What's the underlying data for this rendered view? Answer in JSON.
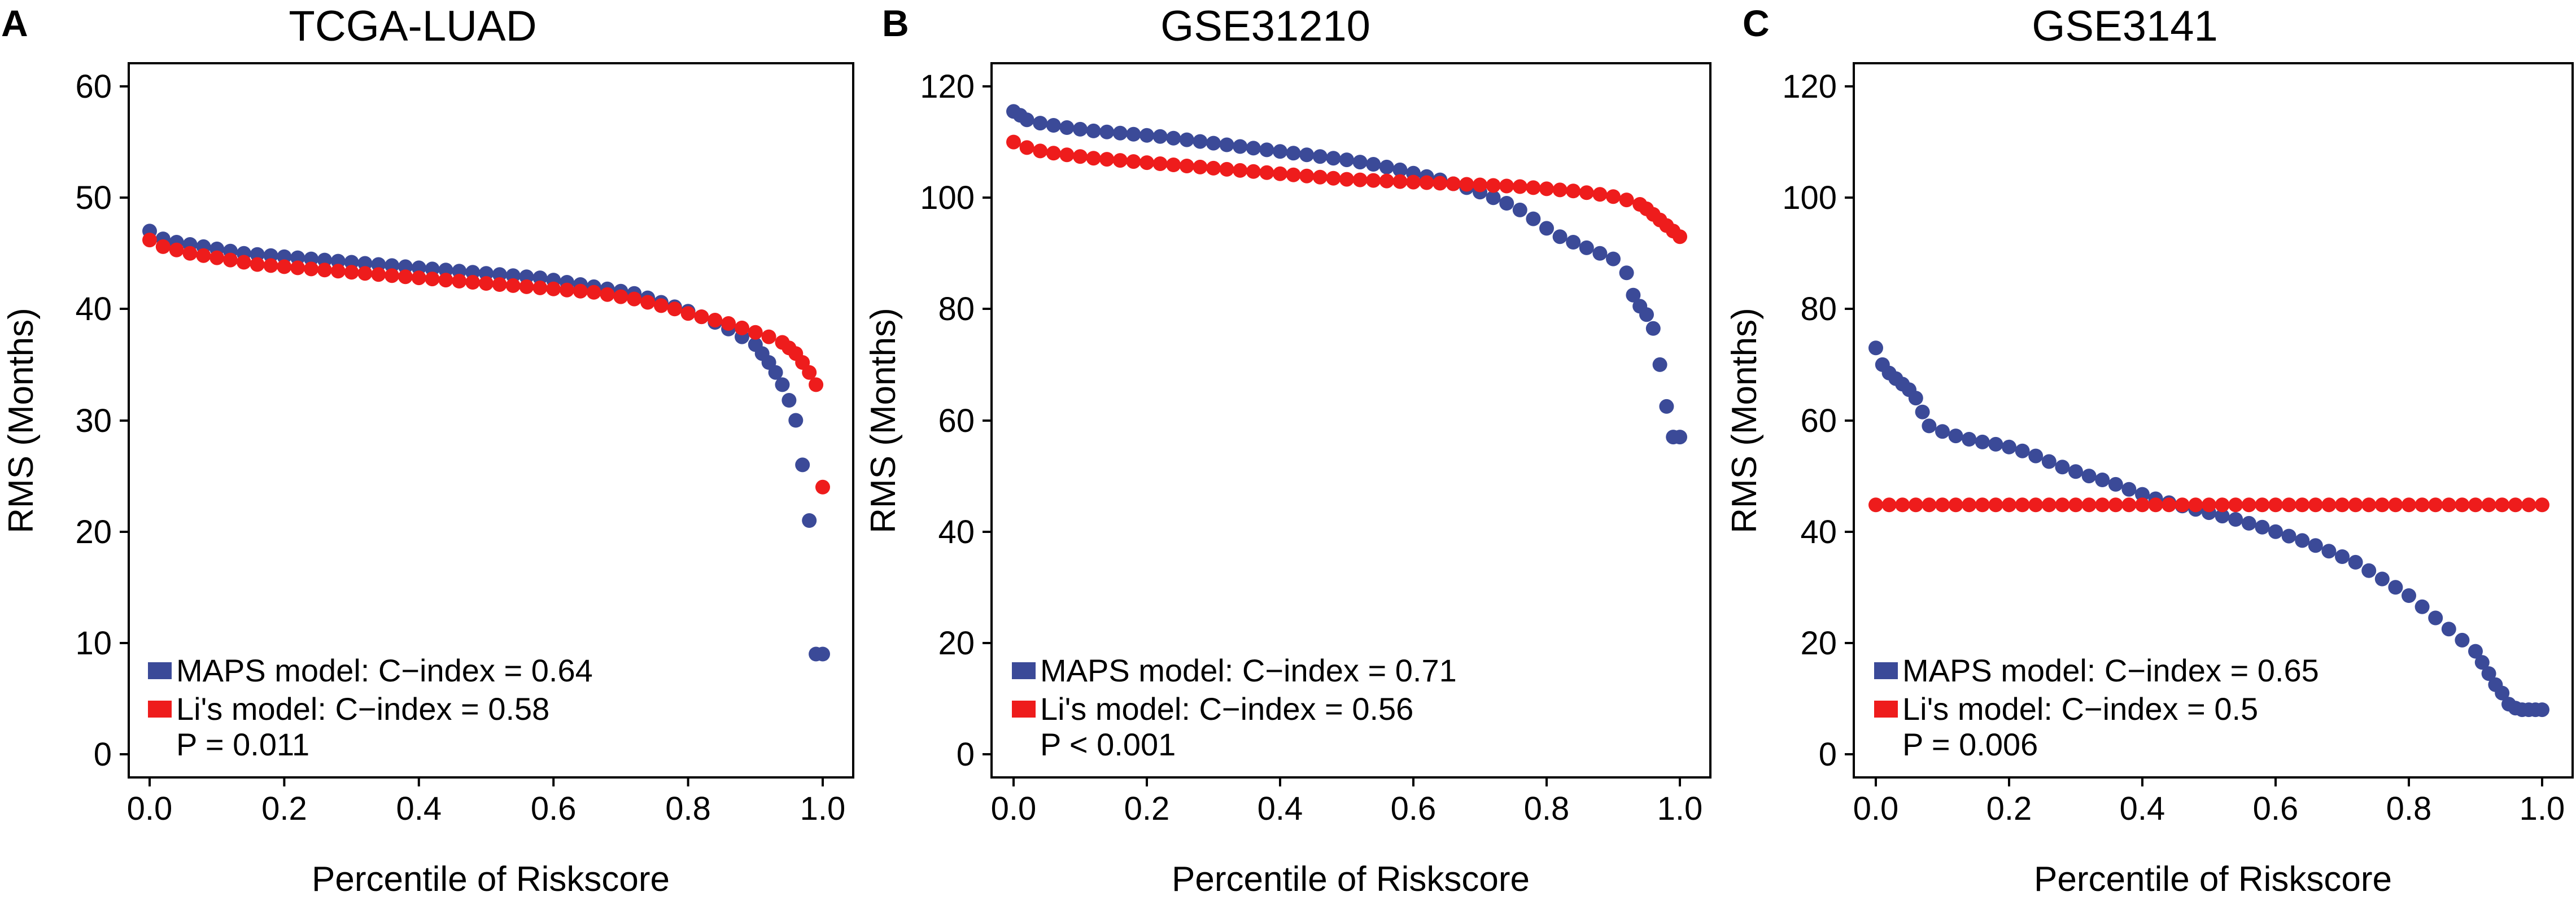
{
  "figure": {
    "colors": {
      "maps": "#3b4a98",
      "li": "#ee1c1c"
    },
    "marker_icon": "filled-circle",
    "legend_swatch_icon": "filled-rectangle"
  },
  "chart_data": [
    {
      "type": "scatter",
      "panel_label": "A",
      "title": "TCGA-LUAD",
      "xlabel": "Percentile of Riskscore",
      "ylabel": "RMS (Months)",
      "xlim": [
        0.0,
        1.0
      ],
      "ylim": [
        0,
        60
      ],
      "xticks": [
        "0.0",
        "0.2",
        "0.4",
        "0.6",
        "0.8",
        "1.0"
      ],
      "yticks": [
        "0",
        "10",
        "20",
        "30",
        "40",
        "50",
        "60"
      ],
      "grid": false,
      "legend_position": "bottom-left",
      "series": [
        {
          "name": "MAPS model: C−index = 0.64",
          "color": "#3b4a98",
          "x": [
            0.0,
            0.02,
            0.04,
            0.06,
            0.08,
            0.1,
            0.12,
            0.14,
            0.16,
            0.18,
            0.2,
            0.22,
            0.24,
            0.26,
            0.28,
            0.3,
            0.32,
            0.34,
            0.36,
            0.38,
            0.4,
            0.42,
            0.44,
            0.46,
            0.48,
            0.5,
            0.52,
            0.54,
            0.56,
            0.58,
            0.6,
            0.62,
            0.64,
            0.66,
            0.68,
            0.7,
            0.72,
            0.74,
            0.76,
            0.78,
            0.8,
            0.82,
            0.84,
            0.86,
            0.88,
            0.9,
            0.91,
            0.92,
            0.93,
            0.94,
            0.95,
            0.96,
            0.97,
            0.98,
            0.99,
            1.0
          ],
          "y": [
            47.0,
            46.3,
            46.0,
            45.8,
            45.6,
            45.4,
            45.2,
            45.0,
            44.9,
            44.8,
            44.7,
            44.6,
            44.5,
            44.4,
            44.3,
            44.2,
            44.1,
            44.0,
            43.9,
            43.8,
            43.7,
            43.6,
            43.5,
            43.4,
            43.3,
            43.2,
            43.1,
            43.0,
            42.9,
            42.8,
            42.6,
            42.4,
            42.2,
            42.0,
            41.8,
            41.6,
            41.4,
            41.0,
            40.6,
            40.2,
            39.8,
            39.3,
            38.8,
            38.2,
            37.5,
            36.8,
            36.0,
            35.2,
            34.3,
            33.2,
            31.8,
            30.0,
            26.0,
            21.0,
            9.0,
            9.0
          ]
        },
        {
          "name": "Li's model: C−index = 0.58",
          "color": "#ee1c1c",
          "x": [
            0.0,
            0.02,
            0.04,
            0.06,
            0.08,
            0.1,
            0.12,
            0.14,
            0.16,
            0.18,
            0.2,
            0.22,
            0.24,
            0.26,
            0.28,
            0.3,
            0.32,
            0.34,
            0.36,
            0.38,
            0.4,
            0.42,
            0.44,
            0.46,
            0.48,
            0.5,
            0.52,
            0.54,
            0.56,
            0.58,
            0.6,
            0.62,
            0.64,
            0.66,
            0.68,
            0.7,
            0.72,
            0.74,
            0.76,
            0.78,
            0.8,
            0.82,
            0.84,
            0.86,
            0.88,
            0.9,
            0.92,
            0.94,
            0.95,
            0.96,
            0.97,
            0.98,
            0.99,
            1.0
          ],
          "y": [
            46.2,
            45.6,
            45.3,
            45.0,
            44.8,
            44.6,
            44.4,
            44.2,
            44.0,
            43.9,
            43.8,
            43.7,
            43.6,
            43.5,
            43.4,
            43.3,
            43.2,
            43.1,
            43.0,
            42.9,
            42.8,
            42.7,
            42.6,
            42.5,
            42.4,
            42.3,
            42.2,
            42.1,
            42.0,
            41.9,
            41.8,
            41.7,
            41.6,
            41.5,
            41.3,
            41.1,
            40.9,
            40.6,
            40.3,
            40.0,
            39.6,
            39.3,
            39.0,
            38.7,
            38.3,
            37.9,
            37.5,
            37.0,
            36.5,
            36.0,
            35.2,
            34.3,
            33.2,
            24.0
          ]
        }
      ],
      "p_value_text": "P = 0.011"
    },
    {
      "type": "scatter",
      "panel_label": "B",
      "title": "GSE31210",
      "xlabel": "Percentile of Riskscore",
      "ylabel": "RMS (Months)",
      "xlim": [
        0.0,
        1.0
      ],
      "ylim": [
        0,
        120
      ],
      "xticks": [
        "0.0",
        "0.2",
        "0.4",
        "0.6",
        "0.8",
        "1.0"
      ],
      "yticks": [
        "0",
        "20",
        "40",
        "60",
        "80",
        "100",
        "120"
      ],
      "grid": false,
      "legend_position": "bottom-left",
      "series": [
        {
          "name": "MAPS model: C−index = 0.71",
          "color": "#3b4a98",
          "x": [
            0.0,
            0.01,
            0.02,
            0.04,
            0.06,
            0.08,
            0.1,
            0.12,
            0.14,
            0.16,
            0.18,
            0.2,
            0.22,
            0.24,
            0.26,
            0.28,
            0.3,
            0.32,
            0.34,
            0.36,
            0.38,
            0.4,
            0.42,
            0.44,
            0.46,
            0.48,
            0.5,
            0.52,
            0.54,
            0.56,
            0.58,
            0.6,
            0.62,
            0.64,
            0.66,
            0.68,
            0.7,
            0.72,
            0.74,
            0.76,
            0.78,
            0.8,
            0.82,
            0.84,
            0.86,
            0.88,
            0.9,
            0.92,
            0.93,
            0.94,
            0.95,
            0.96,
            0.97,
            0.98,
            0.99,
            1.0
          ],
          "y": [
            115.5,
            114.8,
            114.0,
            113.4,
            113.0,
            112.6,
            112.3,
            112.0,
            111.8,
            111.6,
            111.4,
            111.2,
            111.0,
            110.7,
            110.4,
            110.1,
            109.8,
            109.5,
            109.2,
            108.9,
            108.6,
            108.3,
            108.0,
            107.7,
            107.4,
            107.1,
            106.8,
            106.4,
            106.0,
            105.5,
            105.0,
            104.4,
            103.8,
            103.2,
            102.5,
            101.8,
            101.0,
            100.0,
            99.0,
            97.8,
            96.2,
            94.5,
            93.0,
            92.0,
            91.0,
            90.0,
            89.0,
            86.5,
            82.5,
            80.5,
            79.0,
            76.5,
            70.0,
            62.5,
            57.0,
            57.0
          ]
        },
        {
          "name": "Li's model: C−index = 0.56",
          "color": "#ee1c1c",
          "x": [
            0.0,
            0.02,
            0.04,
            0.06,
            0.08,
            0.1,
            0.12,
            0.14,
            0.16,
            0.18,
            0.2,
            0.22,
            0.24,
            0.26,
            0.28,
            0.3,
            0.32,
            0.34,
            0.36,
            0.38,
            0.4,
            0.42,
            0.44,
            0.46,
            0.48,
            0.5,
            0.52,
            0.54,
            0.56,
            0.58,
            0.6,
            0.62,
            0.64,
            0.66,
            0.68,
            0.7,
            0.72,
            0.74,
            0.76,
            0.78,
            0.8,
            0.82,
            0.84,
            0.86,
            0.88,
            0.9,
            0.92,
            0.94,
            0.95,
            0.96,
            0.97,
            0.98,
            0.99,
            1.0
          ],
          "y": [
            110.0,
            109.0,
            108.4,
            108.0,
            107.7,
            107.4,
            107.1,
            106.9,
            106.7,
            106.5,
            106.3,
            106.1,
            105.9,
            105.7,
            105.5,
            105.3,
            105.1,
            104.9,
            104.7,
            104.5,
            104.3,
            104.1,
            103.9,
            103.7,
            103.5,
            103.3,
            103.2,
            103.1,
            103.0,
            102.9,
            102.8,
            102.7,
            102.6,
            102.5,
            102.4,
            102.3,
            102.2,
            102.1,
            102.0,
            101.8,
            101.6,
            101.4,
            101.2,
            100.9,
            100.6,
            100.2,
            99.6,
            98.8,
            98.0,
            97.0,
            96.0,
            95.0,
            94.0,
            93.0
          ]
        }
      ],
      "p_value_text": "P < 0.001"
    },
    {
      "type": "scatter",
      "panel_label": "C",
      "title": "GSE3141",
      "xlabel": "Percentile of Riskscore",
      "ylabel": "RMS (Months)",
      "xlim": [
        0.0,
        1.0
      ],
      "ylim": [
        0,
        120
      ],
      "xticks": [
        "0.0",
        "0.2",
        "0.4",
        "0.6",
        "0.8",
        "1.0"
      ],
      "yticks": [
        "0",
        "20",
        "40",
        "60",
        "80",
        "100",
        "120"
      ],
      "grid": false,
      "legend_position": "bottom-left",
      "series": [
        {
          "name": "MAPS model: C−index = 0.65",
          "color": "#3b4a98",
          "x": [
            0.0,
            0.01,
            0.02,
            0.03,
            0.04,
            0.05,
            0.06,
            0.07,
            0.08,
            0.1,
            0.12,
            0.14,
            0.16,
            0.18,
            0.2,
            0.22,
            0.24,
            0.26,
            0.28,
            0.3,
            0.32,
            0.34,
            0.36,
            0.38,
            0.4,
            0.42,
            0.44,
            0.46,
            0.48,
            0.5,
            0.52,
            0.54,
            0.56,
            0.58,
            0.6,
            0.62,
            0.64,
            0.66,
            0.68,
            0.7,
            0.72,
            0.74,
            0.76,
            0.78,
            0.8,
            0.82,
            0.84,
            0.86,
            0.88,
            0.9,
            0.91,
            0.92,
            0.93,
            0.94,
            0.95,
            0.96,
            0.97,
            0.98,
            0.99,
            1.0
          ],
          "y": [
            73.0,
            70.0,
            68.5,
            67.5,
            66.5,
            65.5,
            64.0,
            61.5,
            59.0,
            58.0,
            57.2,
            56.6,
            56.1,
            55.7,
            55.2,
            54.5,
            53.6,
            52.6,
            51.6,
            50.8,
            50.0,
            49.3,
            48.5,
            47.6,
            46.7,
            45.9,
            45.2,
            44.6,
            44.0,
            43.4,
            42.8,
            42.2,
            41.5,
            40.8,
            40.0,
            39.2,
            38.4,
            37.5,
            36.5,
            35.5,
            34.5,
            33.0,
            31.5,
            30.0,
            28.5,
            26.5,
            24.5,
            22.5,
            20.5,
            18.5,
            16.5,
            14.5,
            12.5,
            11.0,
            9.0,
            8.3,
            8.0,
            8.0,
            8.0,
            8.0
          ]
        },
        {
          "name": "Li's model: C−index = 0.5",
          "color": "#ee1c1c",
          "x": [
            0.0,
            0.02,
            0.04,
            0.06,
            0.08,
            0.1,
            0.12,
            0.14,
            0.16,
            0.18,
            0.2,
            0.22,
            0.24,
            0.26,
            0.28,
            0.3,
            0.32,
            0.34,
            0.36,
            0.38,
            0.4,
            0.42,
            0.44,
            0.46,
            0.48,
            0.5,
            0.52,
            0.54,
            0.56,
            0.58,
            0.6,
            0.62,
            0.64,
            0.66,
            0.68,
            0.7,
            0.72,
            0.74,
            0.76,
            0.78,
            0.8,
            0.82,
            0.84,
            0.86,
            0.88,
            0.9,
            0.92,
            0.94,
            0.96,
            0.98,
            1.0
          ],
          "y": [
            44.8,
            44.8,
            44.8,
            44.8,
            44.8,
            44.8,
            44.8,
            44.8,
            44.8,
            44.8,
            44.8,
            44.8,
            44.8,
            44.8,
            44.8,
            44.8,
            44.8,
            44.8,
            44.8,
            44.8,
            44.8,
            44.8,
            44.8,
            44.8,
            44.8,
            44.8,
            44.8,
            44.8,
            44.8,
            44.8,
            44.8,
            44.8,
            44.8,
            44.8,
            44.8,
            44.8,
            44.8,
            44.8,
            44.8,
            44.8,
            44.8,
            44.8,
            44.8,
            44.8,
            44.8,
            44.8,
            44.8,
            44.8,
            44.8,
            44.8,
            44.8
          ]
        }
      ],
      "p_value_text": "P = 0.006"
    }
  ]
}
